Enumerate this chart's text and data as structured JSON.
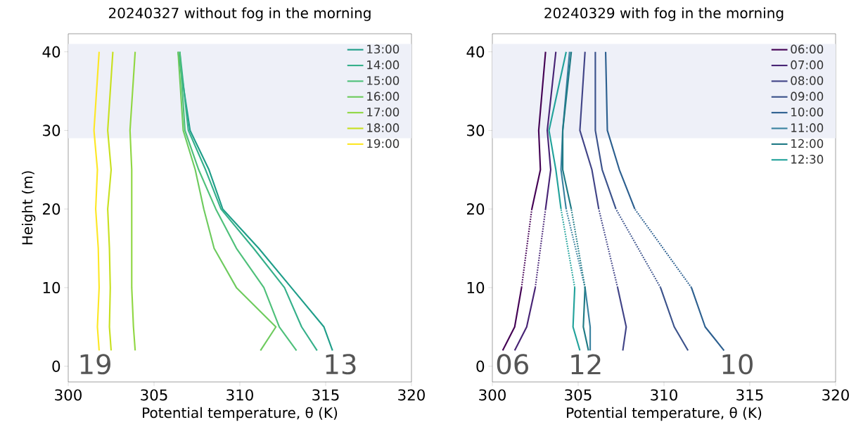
{
  "chart_data": [
    {
      "type": "line",
      "title": "20240327 without fog in the morning",
      "xlabel": "Potential temperature, θ (K)",
      "ylabel": "Height (m)",
      "xlim": [
        300,
        320
      ],
      "xticks": [
        300,
        305,
        310,
        315,
        320
      ],
      "ylim": [
        -2,
        42.3
      ],
      "yticks": [
        0,
        10,
        20,
        30,
        40
      ],
      "legend": "top right",
      "grid": false,
      "line_style": "solid",
      "bands": [
        {
          "axis": "y",
          "from": 29,
          "to": 41,
          "color": "#eef0f8"
        }
      ],
      "annotations": [
        "19",
        "13"
      ],
      "series": [
        {
          "name": "13:00",
          "color": "#1f9e89",
          "x": [
            315.4,
            314.9,
            313.0,
            311.1,
            309.0,
            308.2,
            307.1,
            306.4
          ],
          "values": [
            2,
            5,
            10,
            15,
            20,
            25,
            30,
            40
          ]
        },
        {
          "name": "14:00",
          "color": "#35b08a",
          "x": [
            314.5,
            313.6,
            312.6,
            310.8,
            308.9,
            308.0,
            307.0,
            306.5
          ],
          "values": [
            2,
            5,
            10,
            15,
            20,
            25,
            30,
            40
          ]
        },
        {
          "name": "15:00",
          "color": "#4ec07a",
          "x": [
            313.3,
            312.3,
            311.4,
            309.8,
            308.6,
            307.6,
            306.8,
            306.5
          ],
          "values": [
            2,
            5,
            10,
            15,
            20,
            25,
            30,
            40
          ]
        },
        {
          "name": "16:00",
          "color": "#6ecb5e",
          "x": [
            311.2,
            312.1,
            309.8,
            308.5,
            307.9,
            307.4,
            306.7,
            306.4
          ],
          "values": [
            2,
            5,
            10,
            15,
            20,
            25,
            30,
            40
          ]
        },
        {
          "name": "17:00",
          "color": "#90d743",
          "x": [
            303.9,
            303.8,
            303.7,
            303.7,
            303.7,
            303.7,
            303.6,
            303.9
          ],
          "values": [
            2,
            5,
            10,
            15,
            20,
            25,
            30,
            40
          ]
        },
        {
          "name": "18:00",
          "color": "#c8e020",
          "x": [
            302.5,
            302.4,
            302.45,
            302.4,
            302.3,
            302.5,
            302.3,
            302.6
          ],
          "values": [
            2,
            5,
            10,
            15,
            20,
            25,
            30,
            40
          ]
        },
        {
          "name": "19:00",
          "color": "#fde725",
          "x": [
            301.8,
            301.7,
            301.8,
            301.75,
            301.6,
            301.7,
            301.5,
            301.8
          ],
          "values": [
            2,
            5,
            10,
            15,
            20,
            25,
            30,
            40
          ]
        }
      ]
    },
    {
      "type": "line",
      "title": "20240329 with fog in the morning",
      "xlabel": "Potential temperature, θ (K)",
      "xlim": [
        300,
        320
      ],
      "xticks": [
        300,
        305,
        310,
        315,
        320
      ],
      "ylim": [
        -2,
        42.3
      ],
      "yticks": [
        0,
        10,
        20,
        30,
        40
      ],
      "legend": "top right",
      "grid": false,
      "line_style": "solid",
      "bands": [
        {
          "axis": "y",
          "from": 29,
          "to": 41,
          "color": "#eef0f8"
        }
      ],
      "annotations": [
        "06",
        "12",
        "10"
      ],
      "series": [
        {
          "name": "06:00",
          "color": "#440154",
          "x": [
            300.6,
            301.3,
            301.7,
            null,
            302.3,
            302.8,
            302.7,
            303.1
          ],
          "values": [
            2,
            5,
            10,
            null,
            20,
            25,
            30,
            40
          ]
        },
        {
          "name": "07:00",
          "color": "#482475",
          "x": [
            301.3,
            302.0,
            302.5,
            null,
            303.1,
            303.4,
            303.2,
            303.7
          ],
          "values": [
            2,
            5,
            10,
            null,
            20,
            25,
            30,
            40
          ]
        },
        {
          "name": "08:00",
          "color": "#414487",
          "x": [
            307.6,
            307.8,
            307.3,
            null,
            306.2,
            305.8,
            305.1,
            305.4
          ],
          "values": [
            2,
            5,
            10,
            null,
            20,
            25,
            30,
            40
          ]
        },
        {
          "name": "09:00",
          "color": "#3b528b",
          "x": [
            311.4,
            310.6,
            309.8,
            null,
            307.2,
            306.4,
            306.0,
            306.0
          ],
          "values": [
            2,
            5,
            10,
            null,
            20,
            25,
            30,
            40
          ]
        },
        {
          "name": "10:00",
          "color": "#2c5f8f",
          "x": [
            313.5,
            312.4,
            311.6,
            null,
            308.3,
            307.4,
            306.7,
            306.6
          ],
          "values": [
            2,
            5,
            10,
            null,
            20,
            25,
            30,
            40
          ]
        },
        {
          "name": "11:00",
          "color": "#3a82a0",
          "x": [
            305.7,
            305.7,
            305.4,
            null,
            304.3,
            304.0,
            304.1,
            304.5
          ],
          "values": [
            2,
            5,
            10,
            null,
            20,
            25,
            30,
            40
          ]
        },
        {
          "name": "12:00",
          "color": "#1f7a85",
          "x": [
            305.6,
            305.3,
            305.4,
            null,
            304.6,
            304.1,
            304.1,
            304.6
          ],
          "values": [
            2,
            5,
            10,
            null,
            20,
            25,
            30,
            40
          ]
        },
        {
          "name": "12:30",
          "color": "#22a29b",
          "x": [
            305.1,
            304.7,
            304.8,
            null,
            304.0,
            303.7,
            303.3,
            304.3
          ],
          "values": [
            2,
            5,
            10,
            null,
            20,
            25,
            30,
            40
          ]
        },
        {
          "color": "#450155",
          "line_style": "dotted",
          "x": [
            301.7,
            302.3
          ],
          "values": [
            10,
            20
          ]
        },
        {
          "color": "#492576",
          "line_style": "dotted",
          "x": [
            302.5,
            303.1
          ],
          "values": [
            10,
            20
          ]
        },
        {
          "color": "#424588",
          "line_style": "dotted",
          "x": [
            307.3,
            306.2
          ],
          "values": [
            10,
            20
          ]
        },
        {
          "color": "#3c538c",
          "line_style": "dotted",
          "x": [
            309.8,
            307.2
          ],
          "values": [
            10,
            20
          ]
        },
        {
          "color": "#2d6090",
          "line_style": "dotted",
          "x": [
            311.6,
            308.3
          ],
          "values": [
            10,
            20
          ]
        },
        {
          "color": "#3b83a1",
          "line_style": "dotted",
          "x": [
            305.4,
            304.3
          ],
          "values": [
            10,
            20
          ]
        },
        {
          "color": "#207b86",
          "line_style": "dotted",
          "x": [
            305.4,
            304.6
          ],
          "values": [
            10,
            20
          ]
        },
        {
          "color": "#23a39c",
          "line_style": "dotted",
          "x": [
            304.8,
            304.0
          ],
          "values": [
            10,
            20
          ]
        }
      ]
    }
  ]
}
